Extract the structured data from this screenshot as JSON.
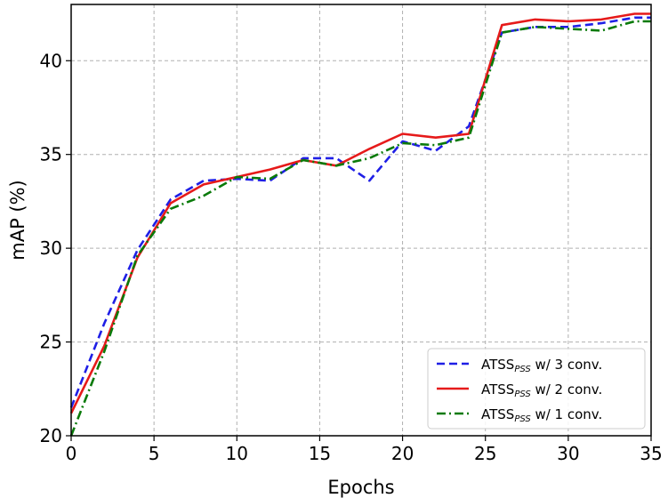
{
  "chart_data": {
    "type": "line",
    "xlabel": "Epochs",
    "ylabel": "mAP (%)",
    "xlim": [
      0,
      35
    ],
    "ylim": [
      20,
      43
    ],
    "xticks": [
      0,
      5,
      10,
      15,
      20,
      25,
      30,
      35
    ],
    "yticks": [
      20,
      25,
      30,
      35,
      40
    ],
    "grid": true,
    "legend_position": "lower-right",
    "series": [
      {
        "name": "ATSS w/ 3 conv.",
        "name_main": "ATSS",
        "name_sub": "PSS",
        "name_rest": " w/ 3 conv.",
        "color": "#1f1fe6",
        "style": "dashed",
        "x": [
          0,
          2,
          4,
          6,
          8,
          10,
          12,
          14,
          16,
          18,
          20,
          22,
          24,
          26,
          28,
          30,
          32,
          34,
          35
        ],
        "y": [
          21.5,
          26.0,
          29.9,
          32.6,
          33.6,
          33.7,
          33.6,
          34.8,
          34.8,
          33.6,
          35.7,
          35.2,
          36.5,
          41.5,
          41.8,
          41.8,
          42.0,
          42.3,
          42.3
        ]
      },
      {
        "name": "ATSS w/ 2 conv.",
        "name_main": "ATSS",
        "name_sub": "PSS",
        "name_rest": " w/ 2 conv.",
        "color": "#e61a1a",
        "style": "solid",
        "x": [
          0,
          2,
          4,
          6,
          8,
          10,
          12,
          14,
          16,
          18,
          20,
          22,
          24,
          26,
          28,
          30,
          32,
          34,
          35
        ],
        "y": [
          21.2,
          24.8,
          29.5,
          32.4,
          33.4,
          33.8,
          34.2,
          34.7,
          34.4,
          35.3,
          36.1,
          35.9,
          36.1,
          41.9,
          42.2,
          42.1,
          42.2,
          42.5,
          42.5
        ]
      },
      {
        "name": "ATSS w/ 1 conv.",
        "name_main": "ATSS",
        "name_sub": "PSS",
        "name_rest": " w/ 1 conv.",
        "color": "#0a7a0a",
        "style": "dashdot",
        "x": [
          0,
          2,
          4,
          6,
          8,
          10,
          12,
          14,
          16,
          18,
          20,
          22,
          24,
          26,
          28,
          30,
          32,
          34,
          35
        ],
        "y": [
          20.0,
          24.5,
          29.6,
          32.1,
          32.8,
          33.8,
          33.7,
          34.7,
          34.4,
          34.8,
          35.6,
          35.5,
          35.9,
          41.5,
          41.8,
          41.7,
          41.6,
          42.1,
          42.1
        ]
      }
    ]
  }
}
